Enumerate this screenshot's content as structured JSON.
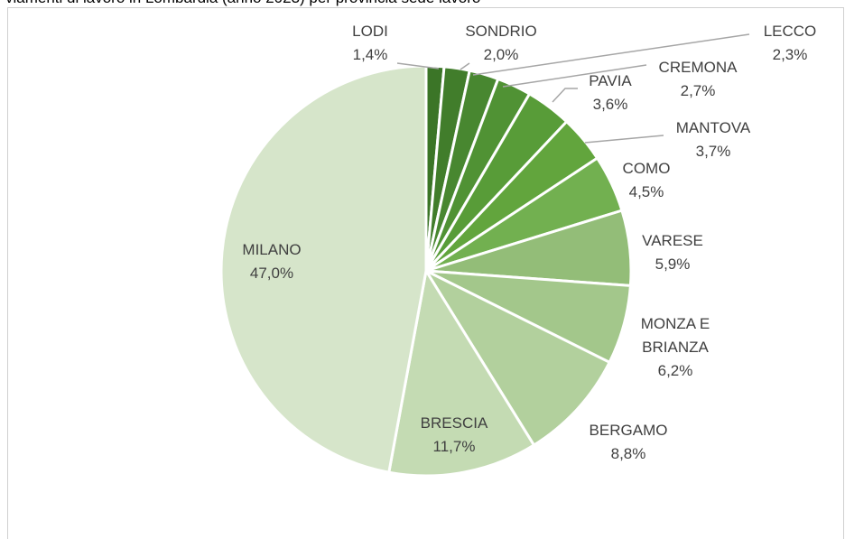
{
  "chart_data": {
    "type": "pie",
    "title": "viamenti di lavoro in Lombardia (anno 2023) per provincia sede lavoro",
    "categories": [
      "LODI",
      "SONDRIO",
      "LECCO",
      "CREMONA",
      "PAVIA",
      "MANTOVA",
      "COMO",
      "VARESE",
      "MONZA E BRIANZA",
      "BERGAMO",
      "BRESCIA",
      "MILANO"
    ],
    "values": [
      1.4,
      2.0,
      2.3,
      2.7,
      3.6,
      3.7,
      4.5,
      5.9,
      6.2,
      8.8,
      11.7,
      47.0
    ],
    "value_labels": [
      "1,4%",
      "2,0%",
      "2,3%",
      "2,7%",
      "3,6%",
      "3,7%",
      "4,5%",
      "5,9%",
      "6,2%",
      "8,8%",
      "11,7%",
      "47,0%"
    ],
    "colors": [
      "#3b7527",
      "#417d2b",
      "#488730",
      "#509234",
      "#589c38",
      "#62a53d",
      "#72b050",
      "#93bd78",
      "#a3c78b",
      "#b2d09d",
      "#c4dbb3",
      "#d6e5ca"
    ]
  }
}
